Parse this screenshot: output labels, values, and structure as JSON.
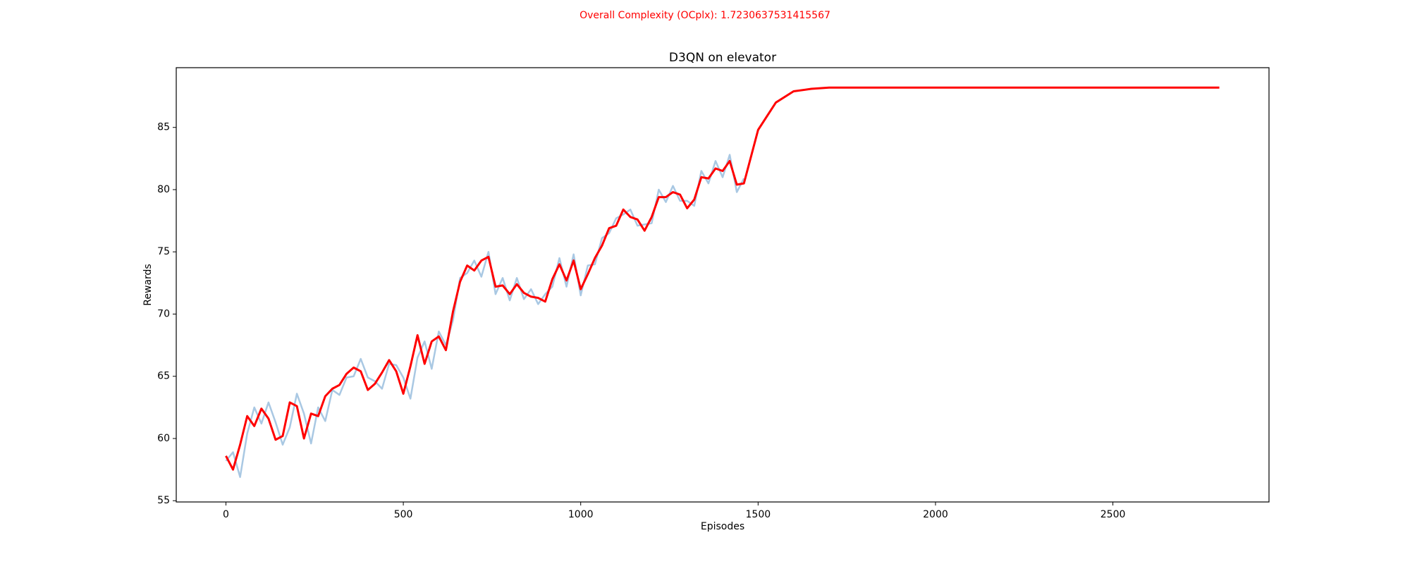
{
  "chart_data": {
    "type": "line",
    "suptitle": "Overall Complexity (OCplx): 1.7230637531415567",
    "suptitle_color": "#ff0000",
    "title": "D3QN on elevator",
    "x_label": "Episodes",
    "y_label": "Rewards",
    "xlim": [
      -140,
      2940
    ],
    "ylim": [
      54.9,
      89.8
    ],
    "xticks": [
      0,
      500,
      1000,
      1500,
      2000,
      2500
    ],
    "yticks": [
      55,
      60,
      65,
      70,
      75,
      80,
      85
    ],
    "grid": false,
    "x": [
      0,
      20,
      40,
      60,
      80,
      100,
      120,
      140,
      160,
      180,
      200,
      220,
      240,
      260,
      280,
      300,
      320,
      340,
      360,
      380,
      400,
      420,
      440,
      460,
      480,
      500,
      520,
      540,
      560,
      580,
      600,
      620,
      640,
      660,
      680,
      700,
      720,
      740,
      760,
      780,
      800,
      820,
      840,
      860,
      880,
      900,
      920,
      940,
      960,
      980,
      1000,
      1020,
      1040,
      1060,
      1080,
      1100,
      1120,
      1140,
      1160,
      1180,
      1200,
      1220,
      1240,
      1260,
      1280,
      1300,
      1320,
      1340,
      1360,
      1380,
      1400,
      1420,
      1440,
      1460,
      1500,
      1550,
      1600,
      1650,
      1700,
      1750,
      1800,
      1850,
      1900,
      1950,
      2000,
      2050,
      2100,
      2150,
      2200,
      2250,
      2300,
      2350,
      2400,
      2450,
      2500,
      2550,
      2600,
      2650,
      2700,
      2750,
      2800
    ],
    "series": [
      {
        "color": "#a9c8e3",
        "width": 2.5,
        "values": [
          58.2,
          58.9,
          56.9,
          60.4,
          62.5,
          61.2,
          62.9,
          61.3,
          59.5,
          60.9,
          63.6,
          62.0,
          59.6,
          62.5,
          61.4,
          63.9,
          63.5,
          64.9,
          65.0,
          66.4,
          64.9,
          64.6,
          64.0,
          66.0,
          65.9,
          64.9,
          63.2,
          66.5,
          67.8,
          65.6,
          68.6,
          67.5,
          69.5,
          72.9,
          73.3,
          74.3,
          73.0,
          75.0,
          71.6,
          72.9,
          71.1,
          72.9,
          71.2,
          72.0,
          70.8,
          71.6,
          72.2,
          74.5,
          72.2,
          74.8,
          71.5,
          73.9,
          74.0,
          76.1,
          76.5,
          77.7,
          78.0,
          78.4,
          77.1,
          77.2,
          77.3,
          80.0,
          79.0,
          80.3,
          79.1,
          79.1,
          78.7,
          81.5,
          80.5,
          82.3,
          81.0,
          82.8,
          79.8,
          80.9,
          null,
          null,
          null,
          null,
          null,
          null,
          null,
          null,
          null,
          null,
          null,
          null,
          null,
          null,
          null,
          null,
          null,
          null,
          null,
          null,
          null,
          null,
          null,
          null,
          null,
          null,
          null
        ]
      },
      {
        "color": "#ff0000",
        "width": 3,
        "values": [
          58.6,
          57.5,
          59.5,
          61.8,
          61.0,
          62.4,
          61.6,
          59.9,
          60.2,
          62.9,
          62.6,
          60.0,
          62.0,
          61.8,
          63.4,
          64.0,
          64.3,
          65.2,
          65.7,
          65.4,
          63.9,
          64.4,
          65.3,
          66.3,
          65.4,
          63.6,
          65.8,
          68.3,
          66.0,
          67.8,
          68.2,
          67.1,
          70.2,
          72.6,
          73.9,
          73.5,
          74.3,
          74.6,
          72.2,
          72.3,
          71.6,
          72.4,
          71.7,
          71.4,
          71.3,
          71.0,
          72.8,
          74.0,
          72.7,
          74.3,
          72.0,
          73.2,
          74.5,
          75.5,
          76.9,
          77.1,
          78.4,
          77.8,
          77.6,
          76.7,
          77.8,
          79.4,
          79.4,
          79.8,
          79.6,
          78.5,
          79.2,
          81.0,
          80.9,
          81.7,
          81.5,
          82.3,
          80.4,
          80.5,
          84.8,
          87.0,
          87.9,
          88.1,
          88.2,
          88.2,
          88.2,
          88.2,
          88.2,
          88.2,
          88.2,
          88.2,
          88.2,
          88.2,
          88.2,
          88.2,
          88.2,
          88.2,
          88.2,
          88.2,
          88.2,
          88.2,
          88.2,
          88.2,
          88.2,
          88.2,
          88.2
        ]
      }
    ]
  }
}
